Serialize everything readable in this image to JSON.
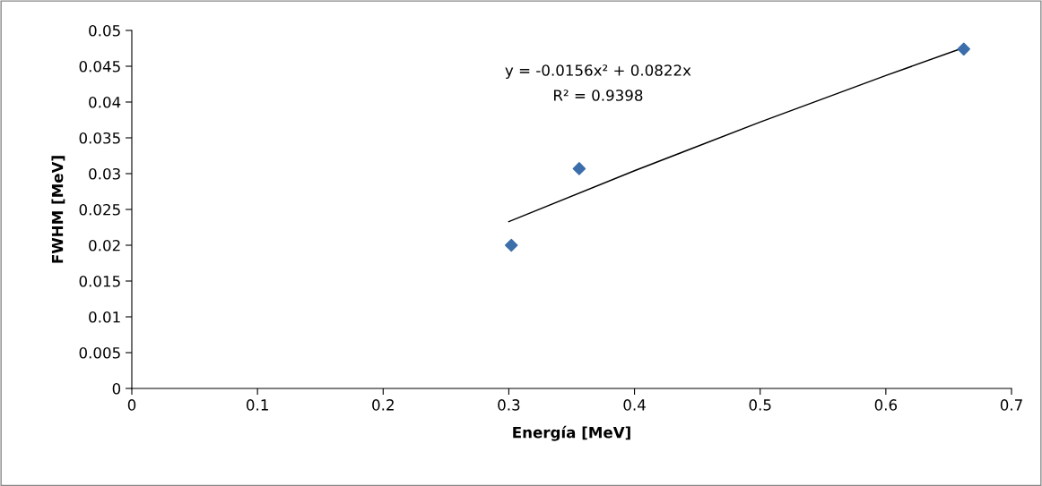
{
  "chart_data": {
    "type": "scatter",
    "xlabel": "Energía [MeV]",
    "ylabel": "FWHM [MeV]",
    "series": [
      {
        "color": "#3b6eaa",
        "marker": "diamond",
        "x": [
          0.302,
          0.356,
          0.662
        ],
        "values": [
          0.02,
          0.0307,
          0.0474
        ]
      },
      {
        "type": "line",
        "color": "#000000",
        "marker": "none",
        "line_style": "solid",
        "x": [
          0.3,
          0.4,
          0.5,
          0.6,
          0.662
        ],
        "values": [
          0.0233,
          0.0304,
          0.0372,
          0.0437,
          0.0476
        ]
      }
    ],
    "annotations": [
      "y = -0.0156x² + 0.0822x",
      "R² = 0.9398"
    ],
    "xlim": [
      0,
      0.7
    ],
    "xticks": [
      0,
      0.1,
      0.2,
      0.3,
      0.4,
      0.5,
      0.6,
      0.7
    ],
    "ylim": [
      0,
      0.05
    ],
    "yticks": [
      0,
      0.005,
      0.01,
      0.015,
      0.02,
      0.025,
      0.03,
      0.035,
      0.04,
      0.045,
      0.05
    ],
    "grid": false,
    "legend": false
  }
}
